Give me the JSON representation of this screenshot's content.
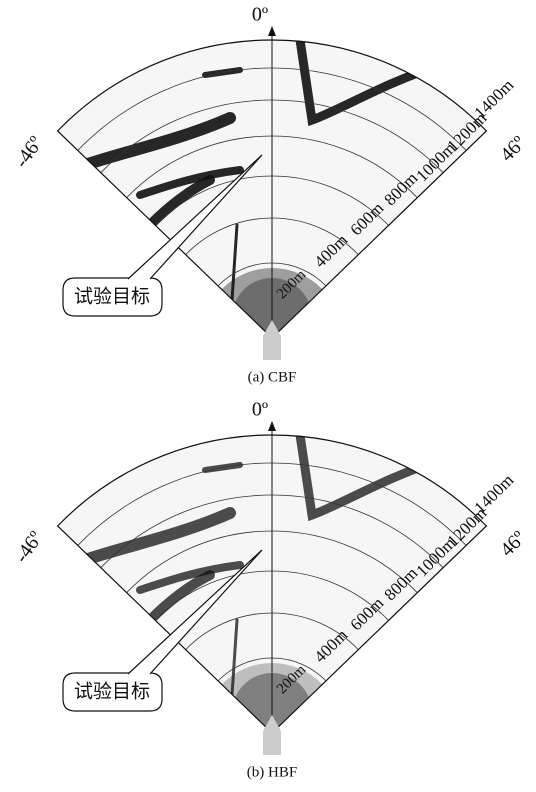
{
  "panels": [
    {
      "caption": "(a) CBF",
      "angle_labels": {
        "center": "0º",
        "left": "-46º",
        "right": "46º"
      },
      "range_labels": [
        "200m",
        "400m",
        "600m",
        "800m",
        "1000m",
        "1200m",
        "1400m"
      ],
      "callout": "试验目标"
    },
    {
      "caption": "(b) HBF",
      "angle_labels": {
        "center": "0º",
        "left": "-46º",
        "right": "46º"
      },
      "range_labels": [
        "200m",
        "400m",
        "600m",
        "800m",
        "1000m",
        "1200m",
        "1400m"
      ],
      "callout": "试验目标"
    }
  ]
}
